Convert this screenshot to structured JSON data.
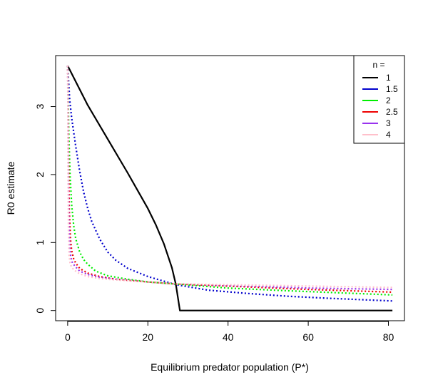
{
  "chart_data": {
    "type": "line",
    "title": "",
    "xlabel": "Equilibrium predator population (P*)",
    "ylabel": "R0 estimate",
    "xlim": [
      -3,
      84
    ],
    "ylim": [
      -0.15,
      3.75
    ],
    "xticks": [
      0,
      20,
      40,
      60,
      80
    ],
    "yticks": [
      0,
      1,
      2,
      3
    ],
    "grid": false,
    "legend": {
      "title": "n =",
      "position": "top-right"
    },
    "series": [
      {
        "name": "1",
        "color": "#000000",
        "style": "solid",
        "x": [
          0,
          5,
          10,
          15,
          20,
          22,
          24,
          26,
          27,
          28,
          28.2,
          40,
          60,
          81
        ],
        "y": [
          3.6,
          3.02,
          2.52,
          2.02,
          1.5,
          1.26,
          0.98,
          0.63,
          0.38,
          0.0,
          0.0,
          0.0,
          0.0,
          0.0
        ]
      },
      {
        "name": "1.5",
        "color": "#0000cc",
        "style": "dotted",
        "x": [
          0,
          0.5,
          1,
          2,
          3,
          4,
          5,
          6,
          8,
          10,
          12,
          15,
          20,
          27,
          35,
          45,
          55,
          65,
          81
        ],
        "y": [
          3.6,
          3.1,
          2.83,
          2.42,
          2.05,
          1.74,
          1.5,
          1.31,
          1.05,
          0.86,
          0.74,
          0.62,
          0.5,
          0.38,
          0.3,
          0.25,
          0.21,
          0.18,
          0.14
        ]
      },
      {
        "name": "2",
        "color": "#00ee00",
        "style": "dotted",
        "x": [
          0,
          0.3,
          0.6,
          1,
          1.5,
          2,
          3,
          4,
          5,
          7,
          10,
          15,
          20,
          27,
          40,
          55,
          81
        ],
        "y": [
          3.6,
          2.6,
          2.0,
          1.55,
          1.25,
          1.06,
          0.86,
          0.75,
          0.68,
          0.58,
          0.51,
          0.46,
          0.42,
          0.39,
          0.33,
          0.29,
          0.23
        ]
      },
      {
        "name": "2.5",
        "color": "#ee0000",
        "style": "dotted",
        "x": [
          0,
          0.2,
          0.4,
          0.7,
          1,
          1.5,
          2,
          3,
          5,
          8,
          12,
          20,
          27,
          40,
          60,
          81
        ],
        "y": [
          3.6,
          2.3,
          1.5,
          1.05,
          0.88,
          0.76,
          0.7,
          0.62,
          0.55,
          0.5,
          0.46,
          0.42,
          0.39,
          0.36,
          0.31,
          0.27
        ]
      },
      {
        "name": "3",
        "color": "#9933ee",
        "style": "dotted",
        "x": [
          0,
          0.15,
          0.3,
          0.5,
          0.8,
          1.2,
          2,
          3,
          5,
          8,
          12,
          20,
          27,
          40,
          60,
          81
        ],
        "y": [
          3.6,
          2.1,
          1.3,
          0.92,
          0.78,
          0.7,
          0.64,
          0.58,
          0.53,
          0.49,
          0.46,
          0.42,
          0.39,
          0.37,
          0.33,
          0.31
        ]
      },
      {
        "name": "4",
        "color": "#ffc0cb",
        "style": "dotted",
        "x": [
          0,
          0.1,
          0.2,
          0.35,
          0.6,
          1,
          2,
          3,
          5,
          8,
          12,
          20,
          27,
          40,
          60,
          81
        ],
        "y": [
          3.6,
          2.0,
          1.15,
          0.82,
          0.7,
          0.63,
          0.58,
          0.54,
          0.5,
          0.47,
          0.45,
          0.42,
          0.39,
          0.38,
          0.36,
          0.34
        ]
      }
    ]
  }
}
